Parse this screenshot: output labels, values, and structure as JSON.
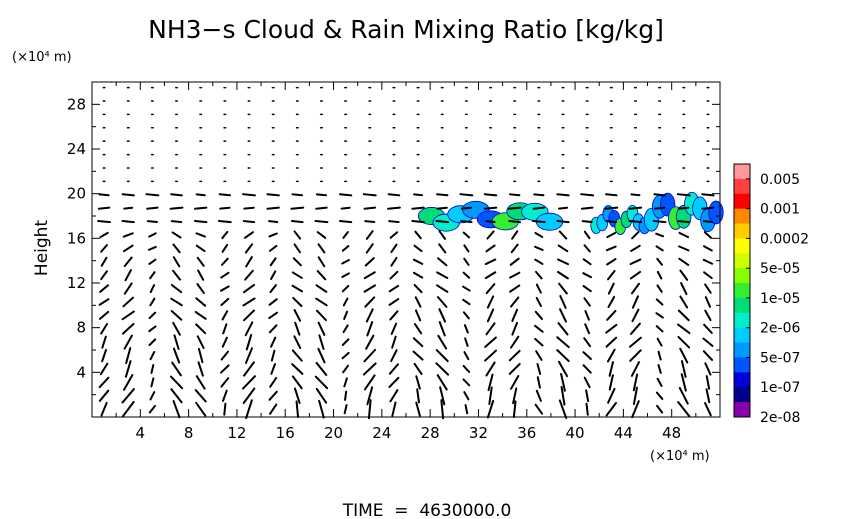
{
  "chart_data": {
    "type": "heatmap",
    "title": "NH3−s Cloud & Rain Mixing Ratio [kg/kg]",
    "ylabel": "Height",
    "y_unit": "(×10⁴ m)",
    "x_unit": "(×10⁴ m)",
    "xlim": [
      0,
      52
    ],
    "ylim": [
      0,
      30
    ],
    "x_ticks": [
      4,
      8,
      12,
      16,
      20,
      24,
      28,
      32,
      36,
      40,
      44,
      48
    ],
    "y_ticks": [
      4,
      8,
      12,
      16,
      20,
      24,
      28
    ],
    "footer": "TIME  =  4630000.0",
    "colorbar": {
      "labels": [
        "0.005",
        "0.001",
        "0.0002",
        "5e-05",
        "1e-05",
        "2e-06",
        "5e-07",
        "1e-07",
        "2e-08"
      ],
      "colors": [
        "#ff9999",
        "#ff4040",
        "#ff0000",
        "#ff8800",
        "#ffcc00",
        "#ffff00",
        "#ccff00",
        "#88ff00",
        "#33ee33",
        "#00dd77",
        "#00eecc",
        "#00ccff",
        "#0099ff",
        "#0055ff",
        "#0000dd",
        "#00008b",
        "#8800aa"
      ]
    },
    "cloud_regions": [
      {
        "x_range": [
          27.5,
          38.5
        ],
        "y_range": [
          16.8,
          19.2
        ],
        "peak_level": "2e-06"
      },
      {
        "x_range": [
          41.5,
          46
        ],
        "y_range": [
          16.5,
          18.8
        ],
        "peak_level": "1e-05"
      },
      {
        "x_range": [
          46,
          52
        ],
        "y_range": [
          16.8,
          20
        ],
        "peak_level": "2e-06"
      }
    ]
  }
}
